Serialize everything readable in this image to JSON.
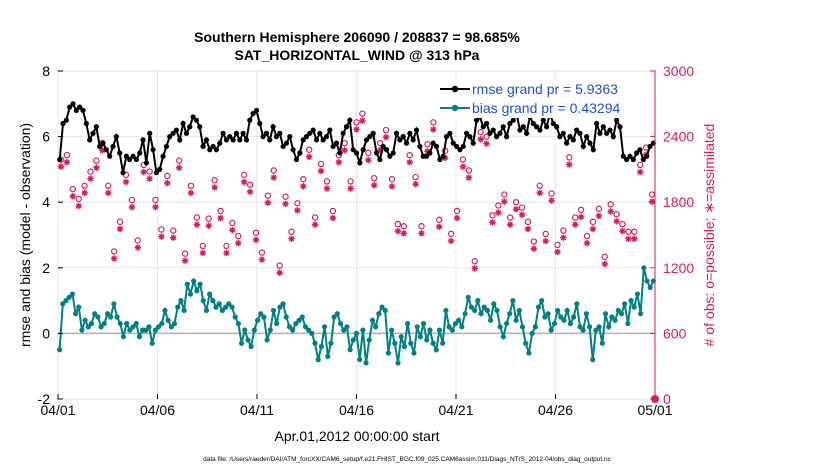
{
  "chart_data": {
    "type": "line",
    "title_line1": "Southern Hemisphere 206090 / 208837 = 98.685%",
    "title_line2": "SAT_HORIZONTAL_WIND @ 313 hPa",
    "xlabel": "Apr.01,2012 00:00:00 start",
    "ylabel_left": "rmse and bias (model - observation)",
    "ylabel_right": "# of obs: o=possible; ∗=assimilated",
    "footnote": "data file: /Users/raeder/DAI/ATM_forcXX/CAM6_setup/f.e21.FHIST_BGC.f09_025.CAM6assim.011/Diags_NTrS_2012-04/obs_diag_output.nc",
    "xlim": [
      0,
      30
    ],
    "ylim_left": [
      -2,
      8
    ],
    "ylim_right": [
      0,
      3000
    ],
    "x_ticks": [
      0,
      5,
      10,
      15,
      20,
      25,
      30
    ],
    "x_tick_labels": [
      "04/01",
      "04/06",
      "04/11",
      "04/16",
      "04/21",
      "04/26",
      "05/01"
    ],
    "left_ticks": [
      -2,
      0,
      2,
      4,
      6,
      8
    ],
    "left_tick_labels": [
      "-2",
      "0",
      "2",
      "4",
      "6",
      "8"
    ],
    "right_ticks": [
      0,
      600,
      1200,
      1800,
      2400,
      3000
    ],
    "right_tick_labels": [
      "0",
      "600",
      "1200",
      "1800",
      "2400",
      "3000"
    ],
    "legend": [
      {
        "label": "rmse grand pr = 5.9363",
        "color": "#000000",
        "text_color": "#1a4fd6"
      },
      {
        "label": "bias grand pr = 0.43294",
        "color": "#008080",
        "text_color": "#1a4fd6"
      }
    ],
    "colors": {
      "rmse": "#000000",
      "bias": "#008080",
      "obs": "#d81b60",
      "zero_line": "#b0b0b0",
      "text_blue": "#1a4fd6"
    },
    "series": [
      {
        "name": "rmse",
        "values": [
          5.3,
          6.4,
          6.5,
          6.9,
          7.0,
          6.8,
          6.9,
          6.8,
          6.4,
          5.9,
          6.1,
          6.3,
          5.7,
          5.8,
          5.6,
          5.4,
          5.7,
          6.0,
          5.5,
          4.9,
          5.4,
          5.3,
          5.4,
          5.3,
          5.5,
          5.9,
          5.2,
          6.1,
          5.6,
          4.9,
          5.0,
          5.4,
          5.7,
          6.0,
          6.1,
          6.2,
          5.9,
          6.4,
          6.1,
          6.3,
          6.6,
          6.5,
          6.3,
          5.7,
          5.9,
          5.6,
          5.7,
          5.6,
          5.8,
          6.1,
          5.9,
          6.0,
          5.9,
          6.1,
          5.9,
          6.1,
          5.9,
          6.5,
          6.7,
          6.8,
          6.4,
          6.0,
          6.1,
          5.9,
          6.3,
          6.0,
          6.1,
          5.7,
          5.8,
          6.0,
          5.6,
          5.3,
          5.5,
          5.9,
          6.0,
          6.1,
          6.2,
          5.9,
          6.1,
          5.9,
          6.0,
          6.2,
          5.7,
          5.8,
          5.5,
          6.1,
          6.3,
          6.5,
          5.6,
          5.5,
          5.2,
          5.6,
          5.9,
          6.0,
          6.1,
          5.5,
          5.3,
          5.7,
          5.6,
          5.4,
          5.5,
          6.1,
          5.9,
          6.0,
          5.8,
          6.1,
          5.9,
          6.2,
          5.7,
          5.4,
          5.4,
          5.5,
          5.8,
          5.7,
          5.3,
          5.4,
          6.0,
          6.1,
          5.8,
          5.7,
          5.6,
          5.7,
          6.1,
          6.0,
          5.8,
          6.5,
          6.6,
          6.3,
          6.4,
          6.1,
          6.2,
          6.0,
          6.1,
          6.3,
          6.0,
          6.4,
          6.5,
          6.7,
          6.2,
          6.3,
          6.1,
          6.6,
          6.4,
          6.3,
          6.2,
          6.5,
          6.3,
          6.7,
          6.4,
          6.3,
          6.0,
          6.1,
          5.8,
          6.0,
          5.9,
          6.2,
          6.1,
          5.7,
          6.0,
          5.8,
          5.6,
          6.4,
          6.1,
          6.3,
          6.1,
          6.2,
          6.0,
          6.5,
          6.3,
          5.4,
          5.3,
          5.4,
          5.3,
          5.5,
          5.6,
          5.3,
          5.4,
          5.7,
          5.8
        ]
      },
      {
        "name": "bias",
        "values": [
          -0.5,
          0.9,
          1.0,
          1.1,
          1.2,
          0.6,
          0.8,
          0.1,
          0.4,
          0.2,
          0.3,
          0.6,
          0.5,
          0.2,
          0.3,
          0.6,
          0.5,
          0.9,
          0.5,
          0.3,
          -0.1,
          0.3,
          0.1,
          0.2,
          0.3,
          -0.1,
          0.1,
          0.1,
          0.2,
          -0.3,
          0.1,
          0.2,
          0.3,
          0.7,
          0.4,
          0.2,
          0.3,
          0.8,
          1.0,
          0.7,
          1.5,
          1.2,
          1.6,
          1.3,
          1.5,
          1.0,
          0.7,
          1.2,
          1.0,
          0.8,
          0.9,
          0.7,
          0.8,
          0.9,
          0.8,
          0.5,
          0.3,
          -0.3,
          0.1,
          -0.2,
          -0.4,
          0.1,
          0.4,
          0.6,
          0.5,
          -0.2,
          0.1,
          0.7,
          0.3,
          0.8,
          0.9,
          0.5,
          0.2,
          0.1,
          0.3,
          0.4,
          0.5,
          0.2,
          0.1,
          0.0,
          -0.3,
          -0.8,
          -0.4,
          0.2,
          -0.7,
          -0.3,
          0.5,
          0.6,
          0.3,
          0.1,
          0.2,
          -0.5,
          -0.2,
          0.0,
          -0.8,
          0.1,
          -0.9,
          -0.2,
          0.4,
          0.2,
          0.6,
          0.8,
          0.7,
          -0.6,
          0.1,
          -0.3,
          -0.9,
          -0.1,
          -0.4,
          0.3,
          -0.3,
          -0.6,
          0.2,
          -0.1,
          0.3,
          -0.2,
          0.1,
          -0.3,
          -0.5,
          0.1,
          -0.3,
          0.7,
          0.2,
          0.1,
          0.3,
          0.4,
          0.2,
          0.6,
          1.1,
          0.8,
          0.7,
          1.0,
          0.6,
          0.8,
          0.7,
          0.4,
          0.9,
          0.7,
          0.2,
          -0.1,
          0.3,
          0.6,
          1.0,
          0.4,
          0.7,
          0.2,
          -0.3,
          -0.6,
          0.0,
          0.2,
          0.8,
          1.0,
          0.5,
          0.6,
          0.1,
          0.3,
          0.7,
          0.5,
          0.4,
          0.7,
          0.3,
          0.5,
          0.9,
          0.2,
          0.1,
          0.6,
          0.2,
          -0.8,
          0.1,
          0.2,
          -0.3,
          0.6,
          0.2,
          0.5,
          0.4,
          0.7,
          0.6,
          0.9,
          0.3,
          1.0,
          0.8,
          1.2,
          0.6,
          2.0,
          1.6,
          1.4,
          1.6
        ]
      },
      {
        "name": "obs_possible",
        "values": [
          2190,
          2230,
          1920,
          1830,
          1950,
          2080,
          2180,
          2340,
          1950,
          1350,
          1620,
          2050,
          1820,
          1450,
          2140,
          2080,
          1820,
          1550,
          2040,
          1540,
          2180,
          1330,
          1950,
          1660,
          1400,
          1650,
          2000,
          1720,
          1400,
          1610,
          1490,
          2050,
          1960,
          1520,
          1340,
          1860,
          2090,
          1220,
          1850,
          1530,
          1790,
          2010,
          2280,
          1660,
          2150,
          1990,
          1720,
          2230,
          2340,
          1990,
          2530,
          2610,
          2250,
          2020,
          2340,
          2460,
          2010,
          1600,
          1580,
          2230,
          2030,
          1580,
          2330,
          2530,
          1640,
          2270,
          1510,
          1720,
          2190,
          2090,
          1260,
          2440,
          2400,
          1680,
          1770,
          1870,
          1660,
          1800,
          1750,
          1620,
          1440,
          1950,
          1510,
          1880,
          1410,
          1540,
          2210,
          1660,
          1730,
          1490,
          1620,
          1740,
          1300,
          1780,
          1690,
          1600,
          1530,
          1530,
          2140,
          2300,
          1870
        ]
      },
      {
        "name": "obs_assimilated",
        "values": [
          2180,
          2220,
          1910,
          1820,
          1940,
          2070,
          2170,
          2330,
          1940,
          1340,
          1610,
          2040,
          1810,
          1440,
          2130,
          2070,
          1810,
          1540,
          2030,
          1530,
          2170,
          1320,
          1940,
          1650,
          1390,
          1640,
          1990,
          1710,
          1390,
          1600,
          1480,
          2040,
          1950,
          1510,
          1330,
          1850,
          2080,
          1210,
          1840,
          1520,
          1780,
          2000,
          2270,
          1650,
          2140,
          1980,
          1710,
          2220,
          2330,
          1980,
          2520,
          2600,
          2240,
          2010,
          2330,
          2450,
          2000,
          1590,
          1570,
          2220,
          2020,
          1570,
          2320,
          2520,
          1630,
          2260,
          1500,
          1710,
          2180,
          2080,
          1250,
          2430,
          2390,
          1670,
          1760,
          1860,
          1650,
          1790,
          1740,
          1610,
          1430,
          1940,
          1500,
          1870,
          1400,
          1530,
          2200,
          1650,
          1720,
          1480,
          1610,
          1730,
          1290,
          1770,
          1680,
          1590,
          1520,
          1520,
          2130,
          2290,
          1860
        ]
      }
    ]
  }
}
